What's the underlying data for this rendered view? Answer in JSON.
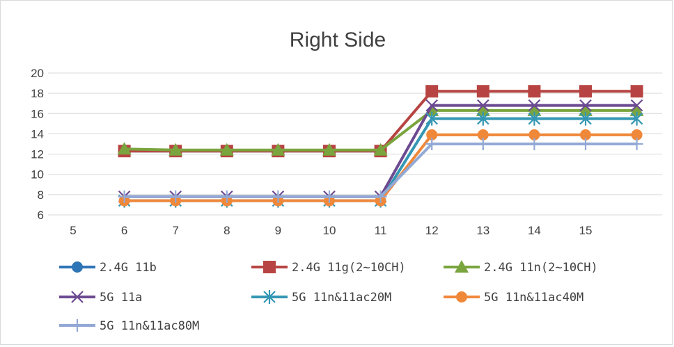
{
  "chart_data": {
    "type": "line",
    "title": "Right Side",
    "xlabel": "",
    "ylabel": "",
    "categories": [
      "5",
      "6",
      "7",
      "8",
      "9",
      "10",
      "11",
      "12",
      "13",
      "14",
      "15",
      ""
    ],
    "x_tick_labels": [
      "5",
      "6",
      "7",
      "8",
      "9",
      "10",
      "11",
      "12",
      "13",
      "14",
      "15"
    ],
    "y_ticks": [
      6,
      8,
      10,
      12,
      14,
      16,
      18,
      20
    ],
    "ylim": [
      6,
      20
    ],
    "grid": true,
    "legend_position": "bottom",
    "series": [
      {
        "name": "2.4G 11b",
        "color": "#2e75b6",
        "marker": "circle",
        "values": [
          null,
          12.3,
          12.3,
          12.3,
          12.3,
          12.3,
          12.3,
          null,
          null,
          null,
          null,
          null
        ]
      },
      {
        "name": "2.4G 11g(2~10CH)",
        "color": "#b74442",
        "marker": "square",
        "values": [
          null,
          12.3,
          12.3,
          12.3,
          12.3,
          12.3,
          12.3,
          18.2,
          18.2,
          18.2,
          18.2,
          18.2
        ]
      },
      {
        "name": "2.4G 11n(2~10CH)",
        "color": "#7aa43e",
        "marker": "triangle",
        "values": [
          null,
          12.5,
          12.4,
          12.4,
          12.4,
          12.4,
          12.4,
          16.3,
          16.3,
          16.3,
          16.3,
          16.3
        ]
      },
      {
        "name": "5G 11a",
        "color": "#6c4a91",
        "marker": "x",
        "values": [
          null,
          7.8,
          7.8,
          7.8,
          7.8,
          7.8,
          7.8,
          16.8,
          16.8,
          16.8,
          16.8,
          16.8
        ]
      },
      {
        "name": "5G 11n&11ac20M",
        "color": "#3497b4",
        "marker": "star",
        "values": [
          null,
          7.4,
          7.4,
          7.4,
          7.4,
          7.4,
          7.4,
          15.5,
          15.5,
          15.5,
          15.5,
          15.5
        ]
      },
      {
        "name": "5G 11n&11ac40M",
        "color": "#f0883a",
        "marker": "circle",
        "values": [
          null,
          7.4,
          7.4,
          7.4,
          7.4,
          7.4,
          7.4,
          13.9,
          13.9,
          13.9,
          13.9,
          13.9
        ]
      },
      {
        "name": "5G 11n&11ac80M",
        "color": "#93a9d5",
        "marker": "plus",
        "values": [
          null,
          7.8,
          7.8,
          7.8,
          7.8,
          7.8,
          7.8,
          13.0,
          13.0,
          13.0,
          13.0,
          13.0
        ]
      }
    ]
  }
}
